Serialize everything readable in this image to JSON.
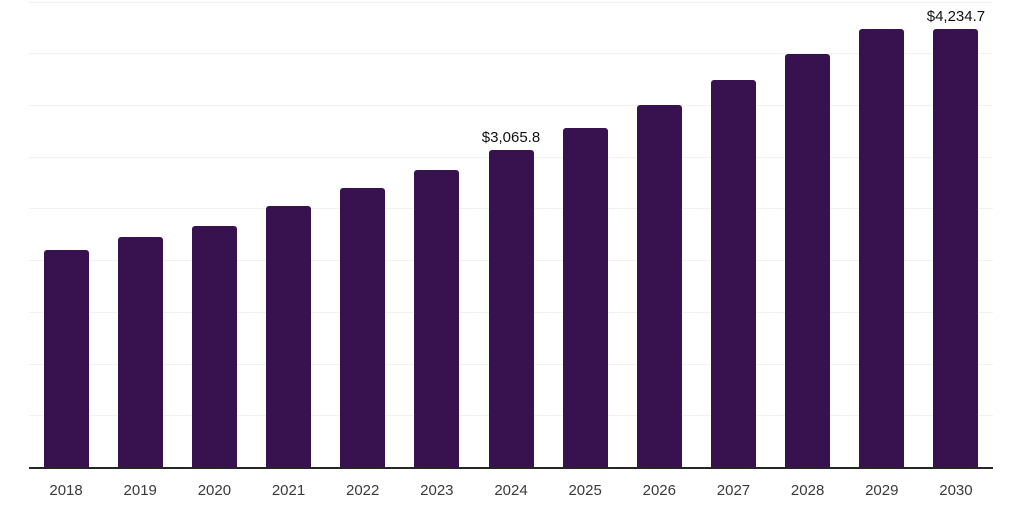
{
  "chart_data": {
    "type": "bar",
    "title": "",
    "xlabel": "",
    "ylabel": "",
    "categories": [
      "2018",
      "2019",
      "2020",
      "2021",
      "2022",
      "2023",
      "2024",
      "2025",
      "2026",
      "2027",
      "2028",
      "2029",
      "2030"
    ],
    "values": [
      2100,
      2225,
      2330,
      2520,
      2700,
      2875,
      3065.8,
      3280,
      3500,
      3740,
      3990,
      4230,
      4234.7
    ],
    "annotations": [
      {
        "category": "2024",
        "text": "$3,065.8"
      },
      {
        "category": "2030",
        "text": "$4,234.7"
      }
    ],
    "ylim": [
      0,
      4515
    ],
    "grid_step": 500,
    "grid": true,
    "legend": false,
    "colors": {
      "bar": "#37124F",
      "gridline": "#f2f2f2",
      "axis_line": "#262626",
      "tick_label": "#3a3a3a",
      "value_label": "#111111"
    }
  }
}
